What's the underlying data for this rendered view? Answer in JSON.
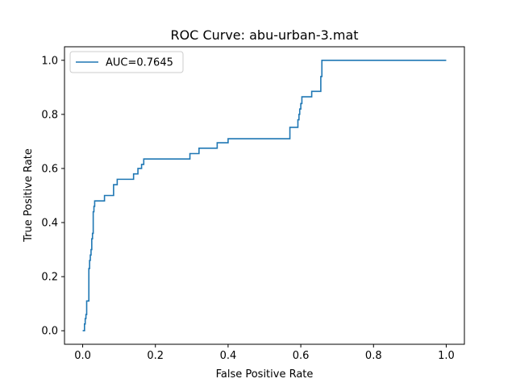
{
  "chart_data": {
    "type": "line",
    "title": "ROC Curve: abu-urban-3.mat",
    "xlabel": "False Positive Rate",
    "ylabel": "True Positive Rate",
    "xlim": [
      -0.05,
      1.05
    ],
    "ylim": [
      -0.05,
      1.05
    ],
    "xticks": [
      0.0,
      0.2,
      0.4,
      0.6,
      0.8,
      1.0
    ],
    "xtick_labels": [
      "0.0",
      "0.2",
      "0.4",
      "0.6",
      "0.8",
      "1.0"
    ],
    "yticks": [
      0.0,
      0.2,
      0.4,
      0.6,
      0.8,
      1.0
    ],
    "ytick_labels": [
      "0.0",
      "0.2",
      "0.4",
      "0.6",
      "0.8",
      "1.0"
    ],
    "grid": false,
    "legend": {
      "placement": "top-left"
    },
    "series": [
      {
        "name": "AUC=0.7645",
        "color": "#1f77b4",
        "x": [
          0.0,
          0.005,
          0.005,
          0.007,
          0.007,
          0.009,
          0.009,
          0.011,
          0.011,
          0.017,
          0.017,
          0.019,
          0.019,
          0.021,
          0.021,
          0.023,
          0.023,
          0.025,
          0.025,
          0.027,
          0.027,
          0.029,
          0.029,
          0.031,
          0.031,
          0.033,
          0.033,
          0.035,
          0.035,
          0.037,
          0.037,
          0.06,
          0.06,
          0.085,
          0.085,
          0.095,
          0.095,
          0.14,
          0.14,
          0.152,
          0.152,
          0.162,
          0.162,
          0.168,
          0.168,
          0.295,
          0.295,
          0.32,
          0.32,
          0.37,
          0.37,
          0.4,
          0.4,
          0.57,
          0.57,
          0.592,
          0.592,
          0.595,
          0.595,
          0.597,
          0.597,
          0.6,
          0.6,
          0.603,
          0.603,
          0.63,
          0.63,
          0.655,
          0.655,
          0.658,
          0.658,
          1.0
        ],
        "y": [
          0.0,
          0.0,
          0.025,
          0.025,
          0.045,
          0.045,
          0.06,
          0.06,
          0.11,
          0.11,
          0.23,
          0.23,
          0.26,
          0.26,
          0.28,
          0.28,
          0.3,
          0.3,
          0.34,
          0.34,
          0.36,
          0.36,
          0.44,
          0.44,
          0.46,
          0.46,
          0.48,
          0.48,
          0.48,
          0.48,
          0.48,
          0.48,
          0.5,
          0.5,
          0.54,
          0.54,
          0.56,
          0.56,
          0.58,
          0.58,
          0.6,
          0.6,
          0.615,
          0.615,
          0.635,
          0.635,
          0.655,
          0.655,
          0.675,
          0.675,
          0.695,
          0.695,
          0.71,
          0.71,
          0.752,
          0.752,
          0.78,
          0.78,
          0.8,
          0.8,
          0.82,
          0.82,
          0.84,
          0.84,
          0.865,
          0.865,
          0.885,
          0.885,
          0.94,
          0.94,
          1.0,
          1.0
        ]
      }
    ]
  }
}
